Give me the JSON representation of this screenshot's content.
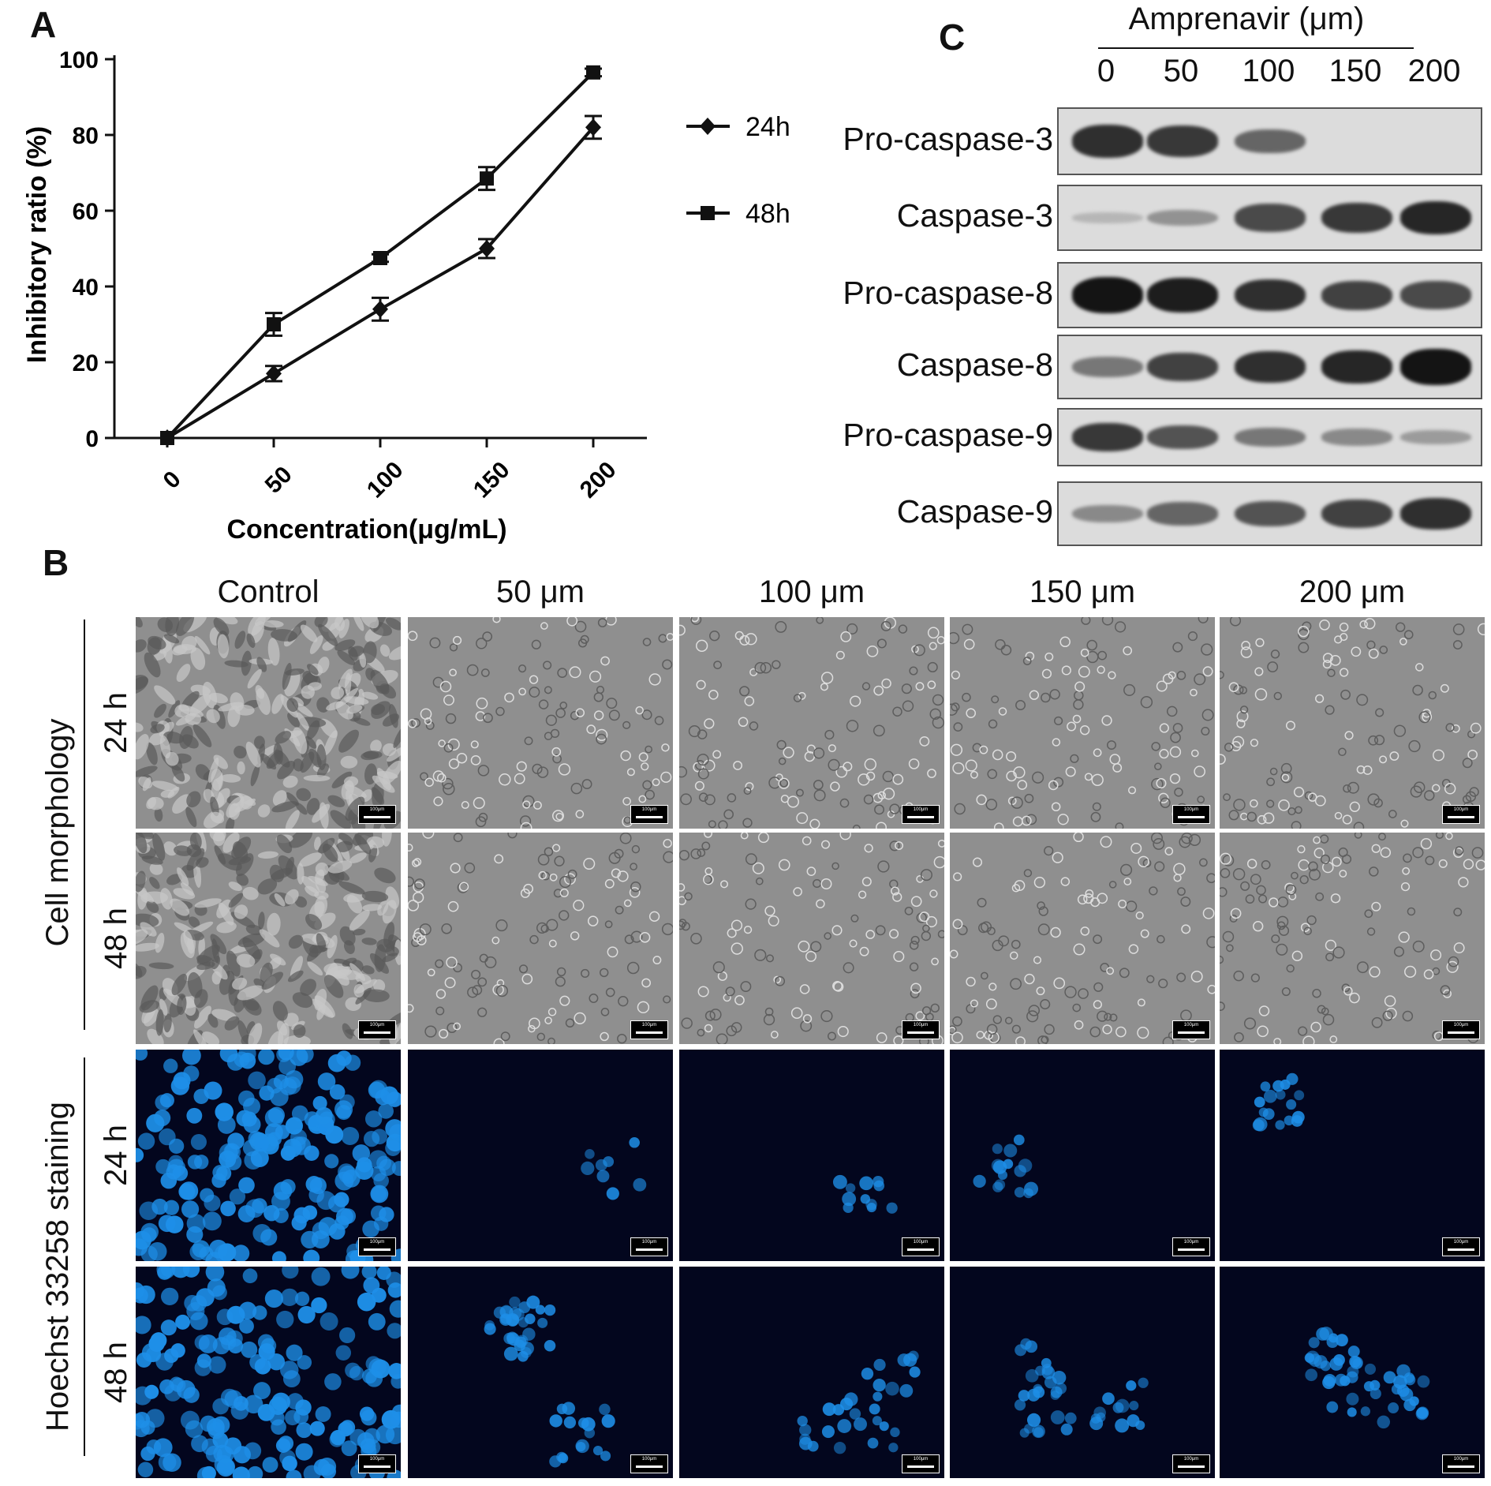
{
  "panel_labels": {
    "a": "A",
    "b": "B",
    "c": "C"
  },
  "chart_data": {
    "type": "line",
    "xlabel": "Concentration(μg/mL)",
    "ylabel": "Inhibitory ratio (%)",
    "categories": [
      "0",
      "50",
      "100",
      "150",
      "200"
    ],
    "ylim": [
      0,
      100
    ],
    "yticks": [
      "0",
      "20",
      "40",
      "60",
      "80",
      "100"
    ],
    "legend_position": "right",
    "series": [
      {
        "name": "24h",
        "marker": "diamond",
        "values": [
          0,
          17,
          34,
          50,
          82
        ],
        "errors": [
          1,
          2,
          3,
          2.5,
          3
        ]
      },
      {
        "name": "48h",
        "marker": "square",
        "values": [
          0,
          30,
          47.5,
          68.5,
          96.5
        ],
        "errors": [
          1,
          3,
          1,
          3,
          1
        ]
      }
    ]
  },
  "western": {
    "title": "Amprenavir (μm)",
    "lanes": [
      "0",
      "50",
      "100",
      "150",
      "200"
    ],
    "rows": [
      {
        "label": "Pro-caspase-3",
        "intensity": [
          0.85,
          0.8,
          0.55,
          0,
          0
        ]
      },
      {
        "label": "Caspase-3",
        "intensity": [
          0.1,
          0.3,
          0.7,
          0.8,
          0.9
        ]
      },
      {
        "label": "Pro-caspase-8",
        "intensity": [
          1.0,
          0.95,
          0.85,
          0.75,
          0.7
        ]
      },
      {
        "label": "Caspase-8",
        "intensity": [
          0.45,
          0.75,
          0.85,
          0.9,
          1.0
        ]
      },
      {
        "label": "Pro-caspase-9",
        "intensity": [
          0.8,
          0.65,
          0.45,
          0.35,
          0.25
        ]
      },
      {
        "label": "Caspase-9",
        "intensity": [
          0.35,
          0.55,
          0.65,
          0.75,
          0.85
        ]
      }
    ]
  },
  "microscopy": {
    "columns": [
      "Control",
      "50 μm",
      "100 μm",
      "150 μm",
      "200 μm"
    ],
    "groups": [
      "Cell morphology",
      "Hoechst 33258 staining"
    ],
    "times": [
      "24 h",
      "48 h",
      "24 h",
      "48 h"
    ],
    "scale_label": "100μm"
  },
  "colors": {
    "morphology_bg": "#8f8f8f",
    "hoechst_bg": "#03061e",
    "nuclei": "#1e8fe8"
  }
}
